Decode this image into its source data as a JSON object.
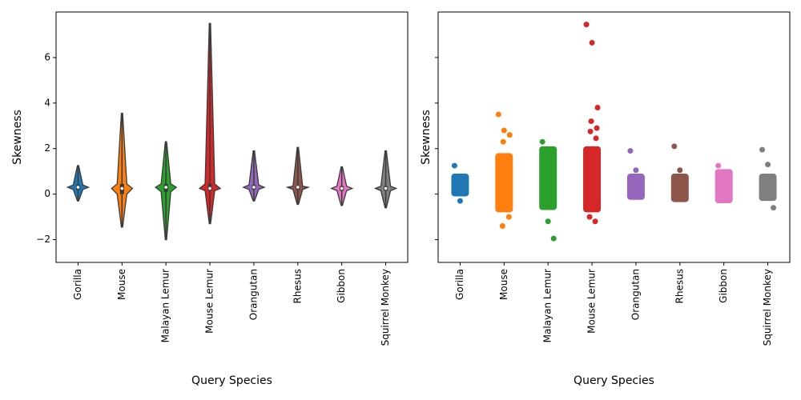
{
  "chart_data": [
    {
      "type": "violin",
      "xlabel": "Query Species",
      "ylabel": "Skewness",
      "categories": [
        "Gorilla",
        "Mouse",
        "Malayan Lemur",
        "Mouse Lemur",
        "Orangutan",
        "Rhesus",
        "Gibbon",
        "Squirrel Monkey"
      ],
      "colors": [
        "#1f77b4",
        "#ff7f0e",
        "#2ca02c",
        "#d62728",
        "#9467bd",
        "#8c564b",
        "#e377c2",
        "#7f7f7f"
      ],
      "stats": [
        {
          "min": -0.3,
          "q1": 0.2,
          "median": 0.3,
          "q3": 0.4,
          "max": 1.25
        },
        {
          "min": -1.45,
          "q1": 0.0,
          "median": 0.25,
          "q3": 0.45,
          "max": 3.55
        },
        {
          "min": -2.0,
          "q1": 0.1,
          "median": 0.3,
          "q3": 0.45,
          "max": 2.3
        },
        {
          "min": -1.3,
          "q1": 0.15,
          "median": 0.25,
          "q3": 0.45,
          "max": 7.5
        },
        {
          "min": -0.3,
          "q1": 0.2,
          "median": 0.3,
          "q3": 0.4,
          "max": 1.9
        },
        {
          "min": -0.45,
          "q1": 0.2,
          "median": 0.3,
          "q3": 0.35,
          "max": 2.05
        },
        {
          "min": -0.5,
          "q1": 0.15,
          "median": 0.25,
          "q3": 0.35,
          "max": 1.2
        },
        {
          "min": -0.6,
          "q1": 0.15,
          "median": 0.25,
          "q3": 0.35,
          "max": 1.9
        }
      ],
      "ylim": [
        -3,
        8
      ],
      "yticks": [
        {
          "value": -2,
          "label": "−2"
        },
        0,
        2,
        4,
        6
      ]
    },
    {
      "type": "strip",
      "xlabel": "Query Species",
      "ylabel": "Skewness",
      "categories": [
        "Gorilla",
        "Mouse",
        "Malayan Lemur",
        "Mouse Lemur",
        "Orangutan",
        "Rhesus",
        "Gibbon",
        "Squirrel Monkey"
      ],
      "groups": [
        {
          "color": "#1f77b4",
          "band": [
            -0.1,
            0.9
          ],
          "points": [
            1.25,
            -0.3
          ]
        },
        {
          "color": "#ff7f0e",
          "band": [
            -0.8,
            1.8
          ],
          "points": [
            3.5,
            2.8,
            2.6,
            2.3,
            -1.0,
            -1.4
          ]
        },
        {
          "color": "#2ca02c",
          "band": [
            -0.7,
            2.1
          ],
          "points": [
            2.3,
            -1.2,
            -1.95
          ]
        },
        {
          "color": "#d62728",
          "band": [
            -0.8,
            2.1
          ],
          "points": [
            7.45,
            6.65,
            3.8,
            3.2,
            2.9,
            2.75,
            2.45,
            -1.0,
            -1.2
          ]
        },
        {
          "color": "#9467bd",
          "band": [
            -0.25,
            0.9
          ],
          "points": [
            1.9,
            1.05
          ]
        },
        {
          "color": "#8c564b",
          "band": [
            -0.35,
            0.9
          ],
          "points": [
            2.1,
            1.05
          ]
        },
        {
          "color": "#e377c2",
          "band": [
            -0.4,
            1.1
          ],
          "points": [
            1.25
          ]
        },
        {
          "color": "#7f7f7f",
          "band": [
            -0.3,
            0.9
          ],
          "points": [
            1.95,
            1.3,
            -0.6
          ]
        }
      ],
      "ylim": [
        -3,
        8
      ],
      "yticks": [
        -2,
        0,
        2,
        4,
        6
      ]
    }
  ]
}
